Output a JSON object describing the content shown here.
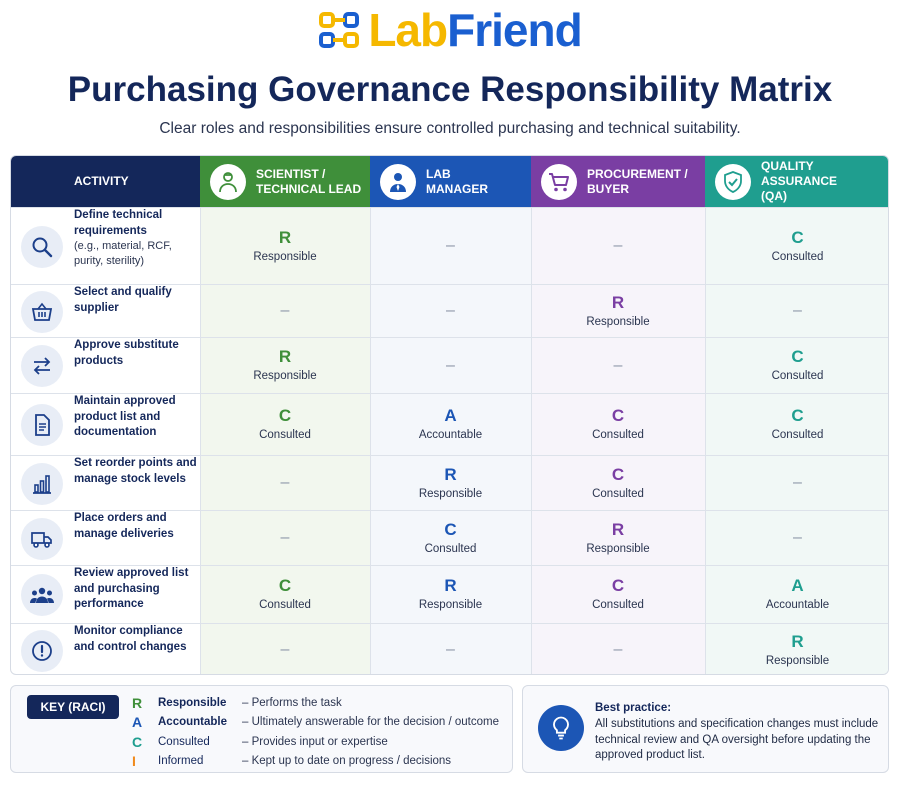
{
  "brand": {
    "lab": "Lab",
    "friend": "Friend",
    "logo_colors": [
      "#f5b800",
      "#1a5fd0"
    ]
  },
  "title": "Purchasing Governance Responsibility Matrix",
  "subtitle": "Clear roles and responsibilities ensure controlled purchasing and technical suitability.",
  "header": {
    "activity": "ACTIVITY",
    "columns": [
      {
        "label": "SCIENTIST /\nTECHNICAL LEAD",
        "icon": "scientist-icon",
        "color": "#3f8f3a"
      },
      {
        "label": "LAB\nMANAGER",
        "icon": "manager-icon",
        "color": "#1c56b5"
      },
      {
        "label": "PROCUREMENT /\nBUYER",
        "icon": "cart-icon",
        "color": "#7a3ea3"
      },
      {
        "label": "QUALITY ASSURANCE\n(QA)",
        "icon": "shield-check-icon",
        "color": "#1f9e8f"
      }
    ]
  },
  "rows": [
    {
      "label": "Define technical requirements",
      "sub": "(e.g., material, RCF, purity, sterility)",
      "icon": "magnifier-icon",
      "cells": [
        {
          "letter": "R",
          "word": "Responsible"
        },
        {
          "dash": "–"
        },
        {
          "dash": "–"
        },
        {
          "letter": "C",
          "word": "Consulted"
        }
      ]
    },
    {
      "label": "Select and qualify supplier",
      "sub": "",
      "icon": "basket-icon",
      "cells": [
        {
          "dash": "–"
        },
        {
          "dash": "–"
        },
        {
          "letter": "R",
          "word": "Responsible"
        },
        {
          "dash": "–"
        }
      ]
    },
    {
      "label": "Approve substitute products",
      "sub": "",
      "icon": "swap-arrows-icon",
      "cells": [
        {
          "letter": "R",
          "word": "Responsible"
        },
        {
          "dash": "–"
        },
        {
          "dash": "–"
        },
        {
          "letter": "C",
          "word": "Consulted"
        }
      ]
    },
    {
      "label": "Maintain approved product list and documentation",
      "sub": "",
      "icon": "document-icon",
      "cells": [
        {
          "letter": "C",
          "word": "Consulted"
        },
        {
          "letter": "A",
          "word": "Accountable"
        },
        {
          "letter": "C",
          "word": "Consulted"
        },
        {
          "letter": "C",
          "word": "Consulted"
        }
      ]
    },
    {
      "label": "Set reorder points and manage stock levels",
      "sub": "",
      "icon": "bar-chart-icon",
      "cells": [
        {
          "dash": "–"
        },
        {
          "letter": "R",
          "word": "Responsible"
        },
        {
          "letter": "C",
          "word": "Consulted"
        },
        {
          "dash": "–"
        }
      ]
    },
    {
      "label": "Place orders and manage deliveries",
      "sub": "",
      "icon": "truck-icon",
      "cells": [
        {
          "dash": "–"
        },
        {
          "letter": "C",
          "word": "Consulted"
        },
        {
          "letter": "R",
          "word": "Responsible"
        },
        {
          "dash": "–"
        }
      ]
    },
    {
      "label": "Review approved list and purchasing performance",
      "sub": "",
      "icon": "team-icon",
      "cells": [
        {
          "letter": "C",
          "word": "Consulted"
        },
        {
          "letter": "R",
          "word": "Responsible"
        },
        {
          "letter": "C",
          "word": "Consulted"
        },
        {
          "letter": "A",
          "word": "Accountable"
        }
      ]
    },
    {
      "label": "Monitor compliance and control changes",
      "sub": "",
      "icon": "alert-icon",
      "cells": [
        {
          "dash": "–"
        },
        {
          "dash": "–"
        },
        {
          "dash": "–"
        },
        {
          "letter": "R",
          "word": "Responsible"
        }
      ]
    }
  ],
  "key": {
    "badge": "KEY (RACI)",
    "items": [
      {
        "letter": "R",
        "term": "Responsible",
        "desc": "– Performs the task",
        "color": "#3f8f3a",
        "bold": true
      },
      {
        "letter": "A",
        "term": "Accountable",
        "desc": "– Ultimately answerable for the decision / outcome",
        "color": "#1c56b5",
        "bold": true
      },
      {
        "letter": "C",
        "term": "Consulted",
        "desc": "– Provides input or expertise",
        "color": "#1f9e8f",
        "bold": false
      },
      {
        "letter": "I",
        "term": "Informed",
        "desc": "– Kept up to date on progress / decisions",
        "color": "#f08a1c",
        "bold": false
      }
    ]
  },
  "tip": {
    "icon": "lightbulb-icon",
    "title": "Best practice:",
    "text": "All substitutions and specification changes must include technical review and QA oversight before updating the approved product list."
  }
}
